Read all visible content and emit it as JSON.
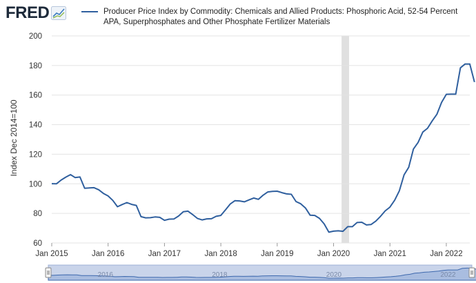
{
  "header": {
    "logo_text": "FRED",
    "logo_icon": "trend-line-icon",
    "legend_label": "Producer Price Index by Commodity: Chemicals and Allied Products: Phosphoric Acid, 52-54 Percent APA, Superphosphates and Other Phosphate Fertilizer Materials"
  },
  "colors": {
    "series": "#2f5f9e",
    "grid": "#e3e3e3",
    "recession": "#e0e0e0",
    "navigator_fill": "#c9d4ea",
    "navigator_line": "#3d68ad"
  },
  "chart_data": {
    "type": "line",
    "title": "Producer Price Index by Commodity: Chemicals and Allied Products: Phosphoric Acid, 52-54 Percent APA, Superphosphates and Other Phosphate Fertilizer Materials",
    "ylabel": "Index Dec 2014=100",
    "xlabel": "",
    "ylim": [
      60,
      200
    ],
    "yticks": [
      60,
      80,
      100,
      120,
      140,
      160,
      180,
      200
    ],
    "xlim_month": [
      0,
      89
    ],
    "xticks": [
      {
        "label": "Jan 2015",
        "month": 0
      },
      {
        "label": "Jan 2016",
        "month": 12
      },
      {
        "label": "Jan 2017",
        "month": 24
      },
      {
        "label": "Jan 2018",
        "month": 36
      },
      {
        "label": "Jan 2019",
        "month": 48
      },
      {
        "label": "Jan 2020",
        "month": 60
      },
      {
        "label": "Jan 2021",
        "month": 72
      },
      {
        "label": "Jan 2022",
        "month": 84
      }
    ],
    "recession": {
      "start_month": 61.7,
      "end_month": 63.3
    },
    "series": [
      {
        "name": "Producer Price Index by Commodity: Chemicals and Allied Products: Phosphoric Acid, 52-54 Percent APA, Superphosphates and Other Phosphate Fertilizer Materials",
        "start": "Jan 2015",
        "values": [
          100.1,
          100.0,
          102.5,
          104.5,
          106.2,
          104.2,
          104.6,
          97.0,
          97.2,
          97.4,
          96.0,
          93.5,
          91.8,
          88.8,
          84.5,
          86.0,
          87.3,
          86.1,
          85.4,
          77.8,
          77.0,
          77.1,
          77.6,
          77.3,
          75.3,
          76.1,
          76.2,
          78.2,
          81.1,
          81.5,
          79.2,
          76.6,
          75.6,
          76.3,
          76.4,
          78.0,
          78.6,
          82.4,
          86.3,
          88.6,
          88.4,
          87.8,
          89.1,
          90.4,
          89.5,
          92.3,
          94.5,
          94.9,
          95.0,
          94.0,
          93.2,
          92.9,
          88.0,
          86.5,
          83.7,
          78.8,
          78.6,
          76.6,
          72.9,
          67.3,
          68.0,
          68.2,
          67.9,
          71.0,
          71.0,
          73.8,
          74.0,
          72.2,
          72.5,
          74.8,
          78.0,
          81.7,
          84.2,
          88.9,
          95.3,
          106.0,
          111.2,
          123.5,
          128.0,
          135.0,
          137.5,
          142.5,
          147.0,
          155.0,
          160.5,
          160.6,
          160.6,
          178.4,
          181.0,
          181.0,
          168.8
        ]
      }
    ],
    "navigator": {
      "labels": [
        {
          "label": "2016",
          "month": 12
        },
        {
          "label": "2018",
          "month": 36
        },
        {
          "label": "2020",
          "month": 60
        },
        {
          "label": "2022",
          "month": 84
        }
      ]
    }
  }
}
